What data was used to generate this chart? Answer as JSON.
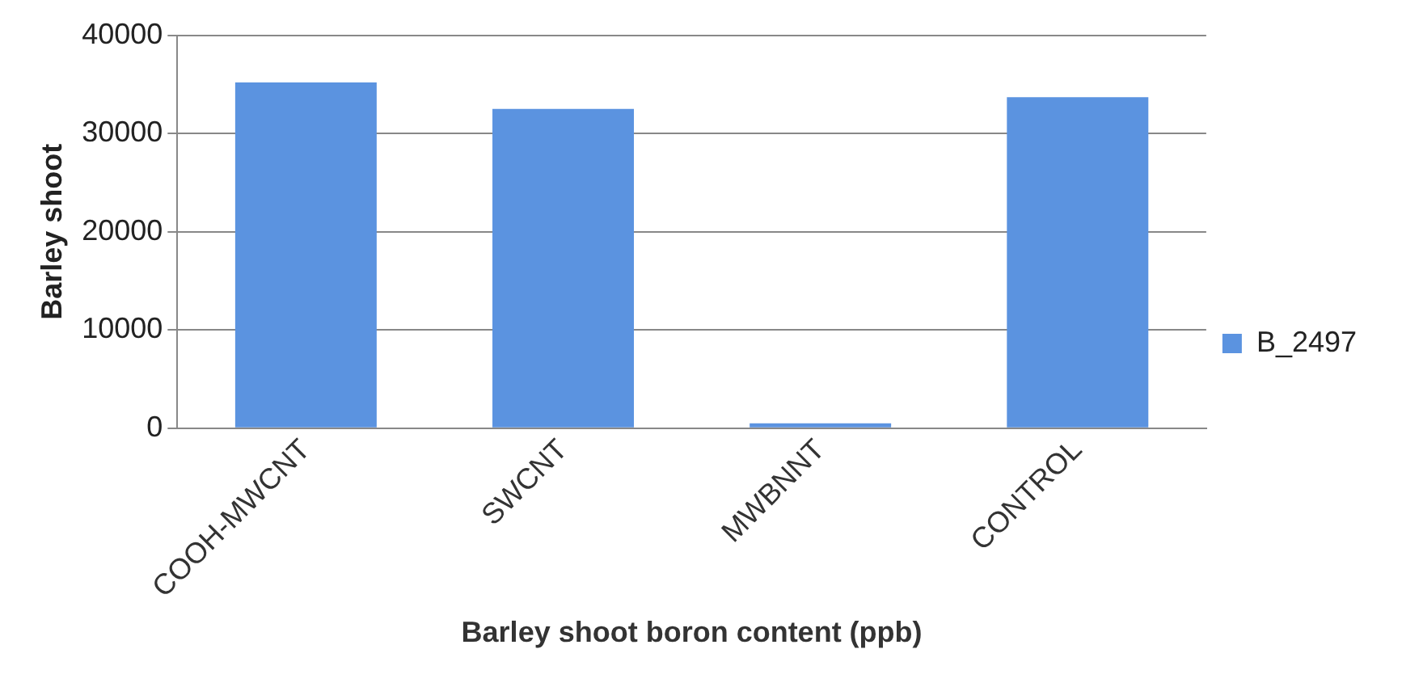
{
  "chart_data": {
    "type": "bar",
    "xlabel": "Barley shoot boron content (ppb)",
    "ylabel": "Barley shoot",
    "categories": [
      "COOH-MWCNT",
      "SWCNT",
      "MWBNNT",
      "CONTROL"
    ],
    "series": [
      {
        "name": "B_2497",
        "color": "#5b93e0",
        "values": [
          35200,
          32500,
          500,
          33700
        ]
      }
    ],
    "ylim": [
      0,
      40000
    ],
    "yticks": [
      0,
      10000,
      20000,
      30000,
      40000
    ],
    "grid": "y",
    "legend": "right"
  }
}
